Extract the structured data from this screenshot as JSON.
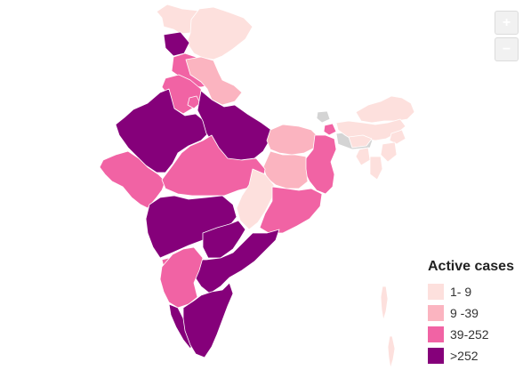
{
  "zoom": {
    "in_label": "+",
    "out_label": "−"
  },
  "legend": {
    "title": "Active cases",
    "items": [
      {
        "label": "1- 9",
        "color": "#fde0dd"
      },
      {
        "label": "9 -39",
        "color": "#fbb4c0"
      },
      {
        "label": "39-252",
        "color": "#f163a4"
      },
      {
        "label": ">252",
        "color": "#85007a"
      }
    ]
  },
  "map_data": {
    "subject": "Active cases by state, India",
    "regions": [
      {
        "name": "Jammu & Kashmir",
        "category": "1- 9"
      },
      {
        "name": "Ladakh",
        "category": "1- 9"
      },
      {
        "name": "Himachal Pradesh",
        "category": ">252"
      },
      {
        "name": "Punjab",
        "category": "39-252"
      },
      {
        "name": "Uttarakhand",
        "category": "9 -39"
      },
      {
        "name": "Haryana",
        "category": "39-252"
      },
      {
        "name": "Delhi",
        "category": "39-252"
      },
      {
        "name": "Rajasthan",
        "category": ">252"
      },
      {
        "name": "Uttar Pradesh",
        "category": ">252"
      },
      {
        "name": "Bihar",
        "category": "9 -39"
      },
      {
        "name": "Gujarat",
        "category": "39-252"
      },
      {
        "name": "Madhya Pradesh",
        "category": "39-252"
      },
      {
        "name": "Jharkhand",
        "category": "9 -39"
      },
      {
        "name": "West Bengal",
        "category": "39-252"
      },
      {
        "name": "Chhattisgarh",
        "category": "1- 9"
      },
      {
        "name": "Odisha",
        "category": "39-252"
      },
      {
        "name": "Maharashtra",
        "category": ">252"
      },
      {
        "name": "Telangana",
        "category": ">252"
      },
      {
        "name": "Andhra Pradesh",
        "category": ">252"
      },
      {
        "name": "Karnataka",
        "category": "39-252"
      },
      {
        "name": "Goa",
        "category": "39-252"
      },
      {
        "name": "Kerala",
        "category": ">252"
      },
      {
        "name": "Tamil Nadu",
        "category": ">252"
      },
      {
        "name": "Sikkim",
        "category": "39-252"
      },
      {
        "name": "Arunachal Pradesh",
        "category": "1- 9"
      },
      {
        "name": "Assam",
        "category": "1- 9"
      },
      {
        "name": "Meghalaya",
        "category": "1- 9"
      },
      {
        "name": "Nagaland",
        "category": "1- 9"
      },
      {
        "name": "Manipur",
        "category": "1- 9"
      },
      {
        "name": "Mizoram",
        "category": "1- 9"
      },
      {
        "name": "Tripura",
        "category": "1- 9"
      },
      {
        "name": "Andaman & Nicobar Islands",
        "category": "1- 9"
      }
    ]
  }
}
